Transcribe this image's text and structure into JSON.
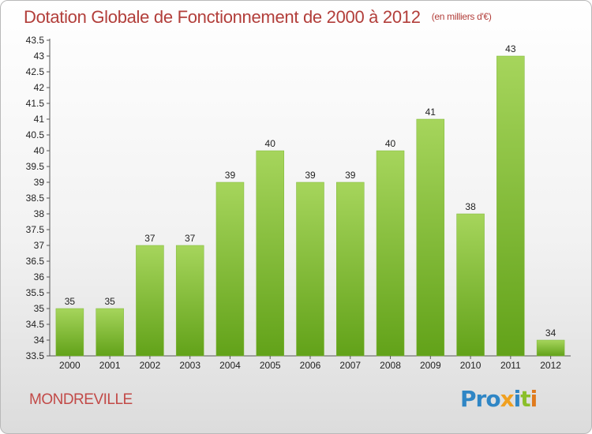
{
  "header": {
    "title": "Dotation Globale de Fonctionnement de 2000 à 2012",
    "subtitle": "(en milliers d'€)"
  },
  "footer": {
    "commune": "MONDREVILLE",
    "logo_text": "Proxiti"
  },
  "colors": {
    "bar_top": "#a6d55c",
    "bar_bottom": "#62a219",
    "title": "#b23e3a",
    "commune": "#c24a48"
  },
  "chart_data": {
    "type": "bar",
    "title": "Dotation Globale de Fonctionnement de 2000 à 2012",
    "subtitle": "(en milliers d'€)",
    "categories": [
      "2000",
      "2001",
      "2002",
      "2003",
      "2004",
      "2005",
      "2006",
      "2007",
      "2008",
      "2009",
      "2010",
      "2011",
      "2012"
    ],
    "values": [
      35,
      35,
      37,
      37,
      39,
      40,
      39,
      39,
      40,
      41,
      38,
      43,
      34
    ],
    "ylim": [
      33.5,
      43.5
    ],
    "yticks": [
      33.5,
      34,
      34.5,
      35,
      35.5,
      36,
      36.5,
      37,
      37.5,
      38,
      38.5,
      39,
      39.5,
      40,
      40.5,
      41,
      41.5,
      42,
      42.5,
      43,
      43.5
    ],
    "xlabel": "",
    "ylabel": "",
    "grid": false,
    "data_labels": true
  }
}
